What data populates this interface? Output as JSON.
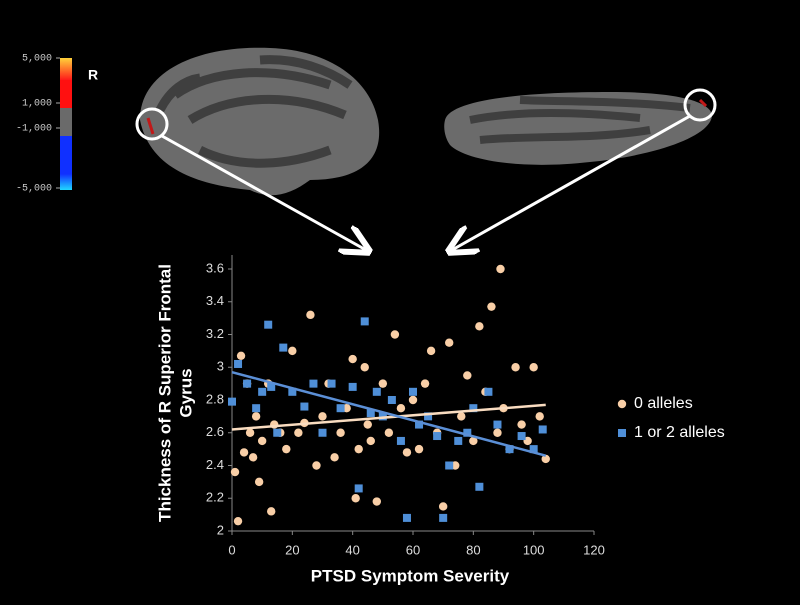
{
  "chart_data": {
    "type": "scatter",
    "xlabel": "PTSD Symptom Severity",
    "ylabel": [
      "Thickness of R Superior Frontal",
      "Gyrus"
    ],
    "xlim": [
      0,
      120
    ],
    "xticks": [
      0,
      20,
      40,
      60,
      80,
      100,
      120
    ],
    "ylim": [
      2,
      3.6
    ],
    "yticks": [
      2,
      2.2,
      2.4,
      2.6,
      2.8,
      3,
      3.2,
      3.4,
      3.6
    ],
    "series": [
      {
        "name": "0 alleles",
        "color": "#f9cfa7",
        "marker": "circle",
        "trend_color": "#f9dcc0",
        "x": [
          1,
          2,
          3,
          4,
          5,
          6,
          7,
          8,
          9,
          10,
          12,
          13,
          14,
          16,
          18,
          20,
          22,
          24,
          26,
          28,
          30,
          32,
          34,
          36,
          38,
          40,
          41,
          42,
          44,
          45,
          46,
          48,
          50,
          52,
          54,
          56,
          58,
          60,
          62,
          64,
          66,
          68,
          70,
          72,
          74,
          76,
          78,
          80,
          82,
          84,
          86,
          88,
          89,
          90,
          92,
          94,
          96,
          98,
          100,
          102,
          104
        ],
        "values": [
          2.36,
          2.06,
          3.07,
          2.48,
          2.9,
          2.6,
          2.45,
          2.7,
          2.3,
          2.55,
          2.9,
          2.12,
          2.65,
          2.6,
          2.5,
          3.1,
          2.6,
          2.66,
          3.32,
          2.4,
          2.7,
          2.9,
          2.45,
          2.6,
          2.75,
          3.05,
          2.2,
          2.5,
          3.0,
          2.65,
          2.55,
          2.18,
          2.9,
          2.6,
          3.2,
          2.75,
          2.48,
          2.8,
          2.5,
          2.9,
          3.1,
          2.6,
          2.15,
          3.15,
          2.4,
          2.7,
          2.95,
          2.55,
          3.25,
          2.85,
          3.37,
          2.6,
          3.6,
          2.75,
          2.5,
          3.0,
          2.65,
          2.55,
          3.0,
          2.7,
          2.44
        ],
        "trend": {
          "x": [
            0,
            104
          ],
          "values": [
            2.62,
            2.77
          ]
        }
      },
      {
        "name": "1 or 2 alleles",
        "color": "#4f8fd8",
        "marker": "square",
        "trend_color": "#5b8fd6",
        "x": [
          0,
          2,
          5,
          8,
          10,
          12,
          13,
          15,
          17,
          20,
          24,
          27,
          30,
          33,
          36,
          40,
          42,
          44,
          46,
          48,
          50,
          53,
          56,
          58,
          60,
          62,
          65,
          68,
          70,
          72,
          75,
          78,
          80,
          82,
          85,
          88,
          92,
          96,
          100,
          103
        ],
        "values": [
          2.79,
          3.02,
          2.9,
          2.75,
          2.85,
          3.26,
          2.88,
          2.6,
          3.12,
          2.85,
          2.76,
          2.9,
          2.6,
          2.9,
          2.75,
          2.88,
          2.26,
          3.28,
          2.72,
          2.85,
          2.7,
          2.8,
          2.55,
          2.08,
          2.85,
          2.65,
          2.7,
          2.58,
          2.08,
          2.4,
          2.55,
          2.6,
          2.75,
          2.27,
          2.85,
          2.65,
          2.5,
          2.58,
          2.5,
          2.62
        ],
        "trend": {
          "x": [
            0,
            104
          ],
          "values": [
            2.97,
            2.46
          ]
        }
      }
    ],
    "colorbar": {
      "label": "R",
      "ticks": [
        {
          "value": 5000,
          "label": "5,000"
        },
        {
          "value": 1000,
          "label": "1,000"
        },
        {
          "value": -1000,
          "label": "-1,000"
        },
        {
          "value": -5000,
          "label": "-5,000"
        }
      ]
    }
  }
}
